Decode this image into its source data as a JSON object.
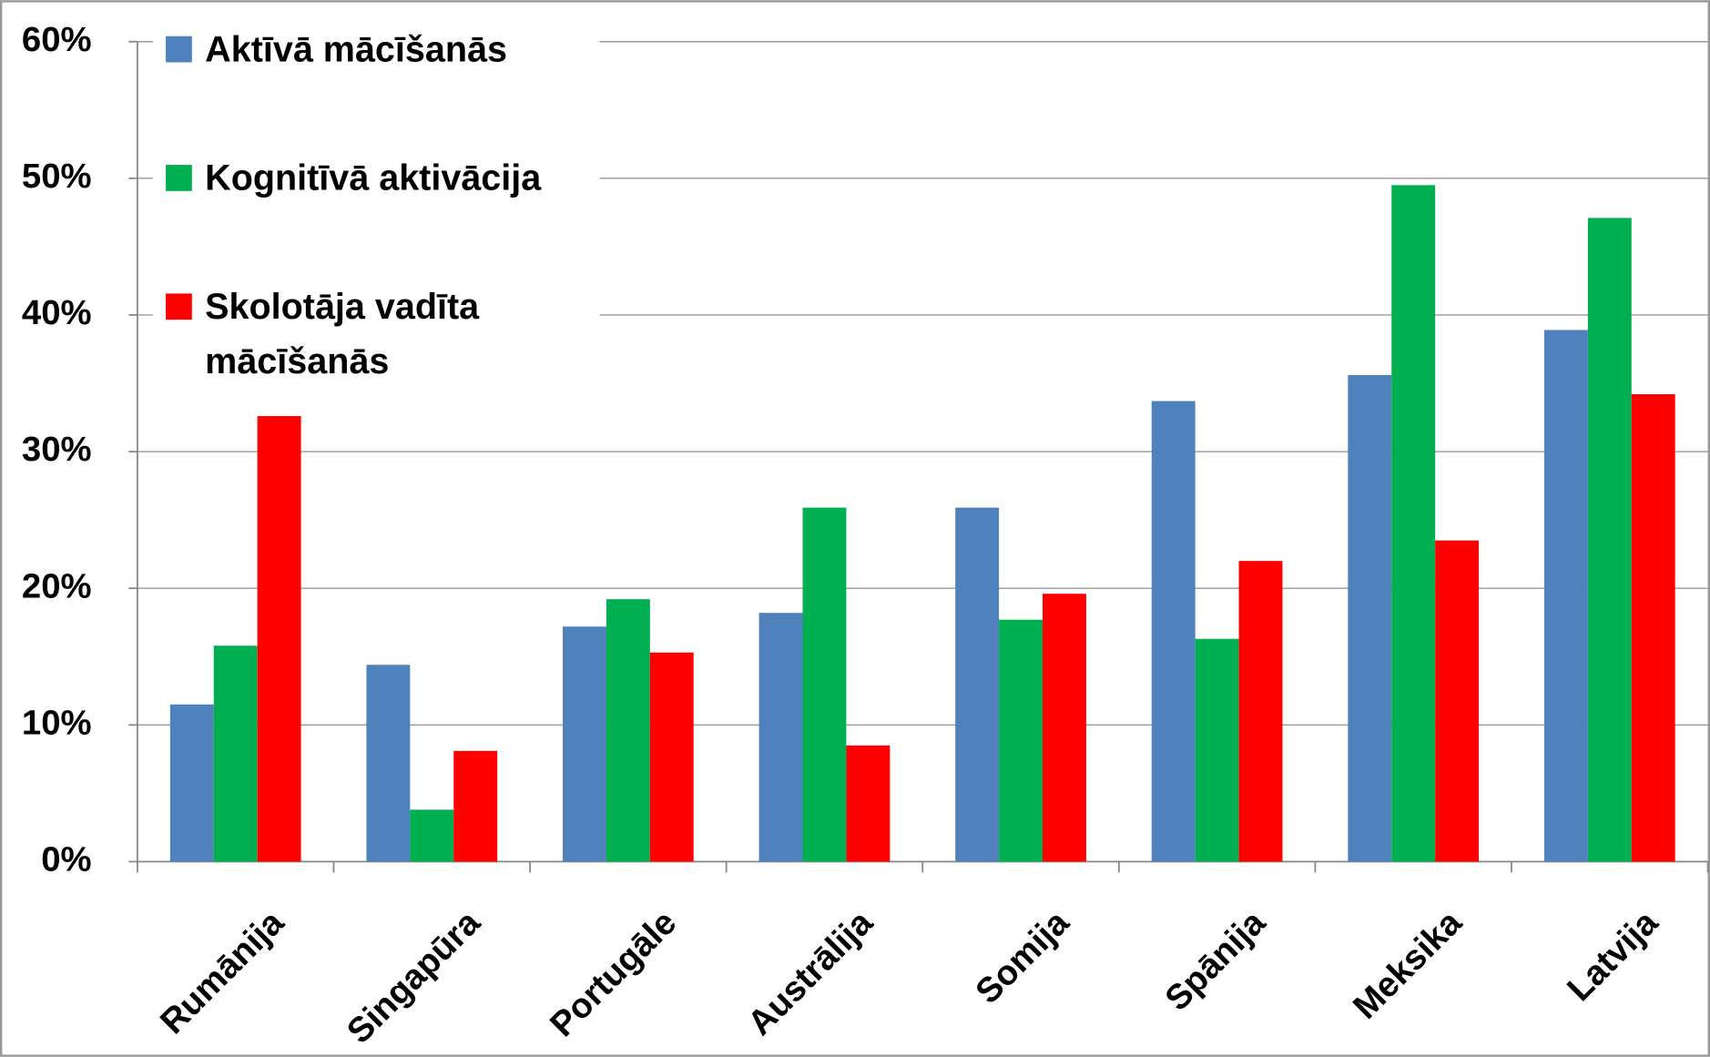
{
  "chart_data": {
    "type": "bar",
    "categories": [
      "Rumānija",
      "Singapūra",
      "Portugāle",
      "Austrālija",
      "Somija",
      "Spānija",
      "Meksika",
      "Latvija"
    ],
    "series": [
      {
        "name": "Aktīvā mācīšanās",
        "color": "#4f81bd",
        "values": [
          11.5,
          14.4,
          17.2,
          18.2,
          25.9,
          33.7,
          35.6,
          38.9
        ]
      },
      {
        "name": "Kognitīvā aktivācija",
        "color": "#00b050",
        "values": [
          15.8,
          3.8,
          19.2,
          25.9,
          17.7,
          16.3,
          49.5,
          47.1
        ]
      },
      {
        "name": "Skolotāja vadīta mācīšanās",
        "color": "#ff0000",
        "values": [
          32.6,
          8.1,
          15.3,
          8.5,
          19.6,
          22.0,
          23.5,
          34.2
        ]
      }
    ],
    "ylim": [
      0,
      60
    ],
    "yticks": [
      {
        "value": 0,
        "label": "0%"
      },
      {
        "value": 10,
        "label": "10%"
      },
      {
        "value": 20,
        "label": "20%"
      },
      {
        "value": 30,
        "label": "30%"
      },
      {
        "value": 40,
        "label": "40%"
      },
      {
        "value": 50,
        "label": "50%"
      },
      {
        "value": 60,
        "label": "60%"
      }
    ],
    "grid": true,
    "legend": "top-left"
  }
}
